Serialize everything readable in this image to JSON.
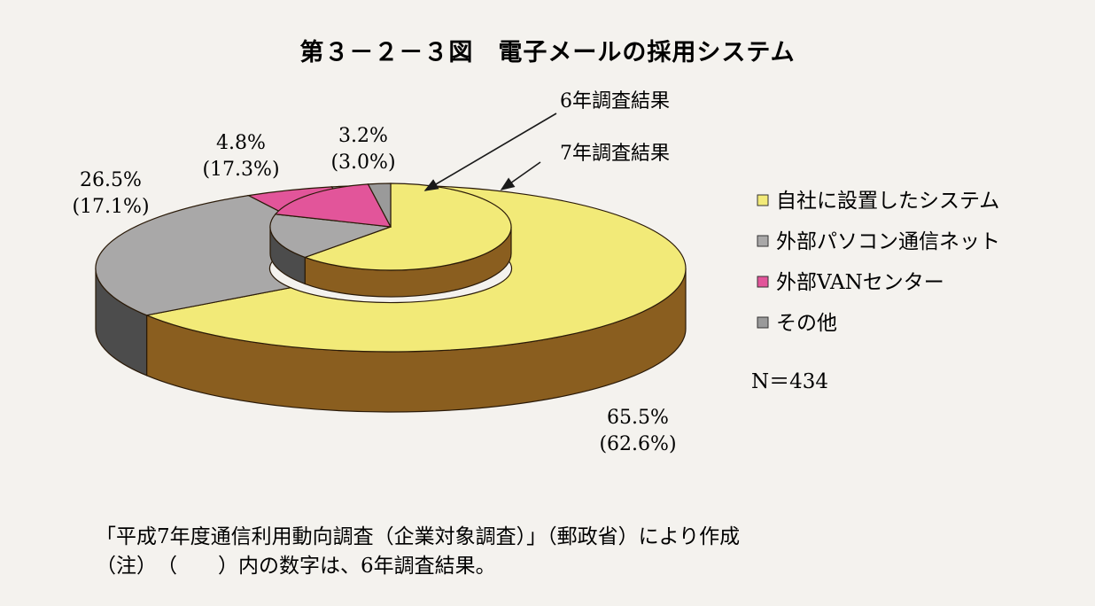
{
  "title": "第３－２－３図　電子メールの採用システム",
  "series_labels": {
    "outer": "7年調査結果",
    "inner": "6年調査結果"
  },
  "sample_size": "N＝434",
  "source_note": "「平成7年度通信利用動向調査（企業対象調査）」（郵政省）により作成",
  "footnote": "（注）　（　　）内の数字は、6年調査結果。",
  "chart_data": {
    "type": "pie",
    "style": "3d-donut-nested",
    "categories": [
      "自社に設置したシステム",
      "外部パソコン通信ネット",
      "外部VANセンター",
      "その他"
    ],
    "series": [
      {
        "name": "7年調査結果",
        "values": [
          65.5,
          26.5,
          4.8,
          3.2
        ]
      },
      {
        "name": "6年調査結果",
        "values": [
          62.6,
          17.1,
          17.3,
          3.0
        ]
      }
    ],
    "labels": [
      {
        "current": "65.5%",
        "previous": "(62.6%)"
      },
      {
        "current": "26.5%",
        "previous": "(17.1%)"
      },
      {
        "current": "4.8%",
        "previous": "(17.3%)"
      },
      {
        "current": "3.2%",
        "previous": "(3.0%)"
      }
    ],
    "colors": [
      "#f2ea78",
      "#a9a8a8",
      "#e2559a",
      "#9a9a9a"
    ],
    "side_color": "#8a5e1f",
    "legend_position": "right"
  }
}
